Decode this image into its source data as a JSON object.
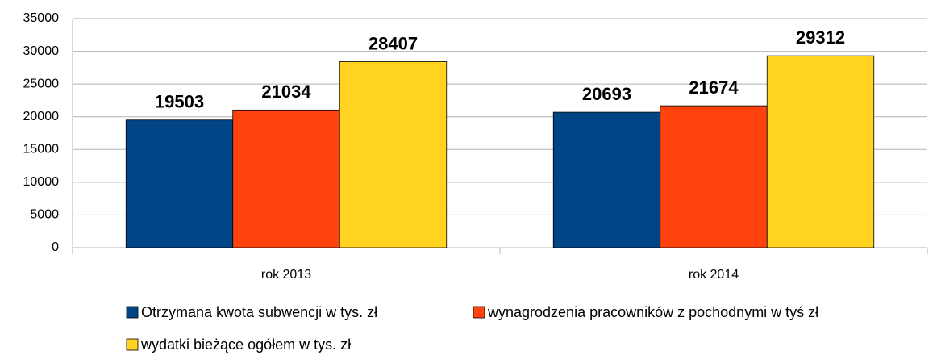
{
  "chart_data": {
    "type": "bar",
    "categories": [
      "rok 2013",
      "rok 2014"
    ],
    "series": [
      {
        "name": "Otrzymana kwota subwencji w tys. zł",
        "color": "#004586",
        "values": [
          19503,
          20693
        ]
      },
      {
        "name": "wynagrodzenia pracowników z pochodnymi w tyś zł",
        "color": "#ff420e",
        "values": [
          21034,
          21674
        ]
      },
      {
        "name": "wydatki bieżące ogółem w tys. zł",
        "color": "#ffd320",
        "values": [
          28407,
          29312
        ]
      }
    ],
    "ylim": [
      0,
      35000
    ],
    "yticks": [
      0,
      5000,
      10000,
      15000,
      20000,
      25000,
      30000,
      35000
    ],
    "grid": true,
    "legend": "bottom",
    "data_labels": true
  }
}
